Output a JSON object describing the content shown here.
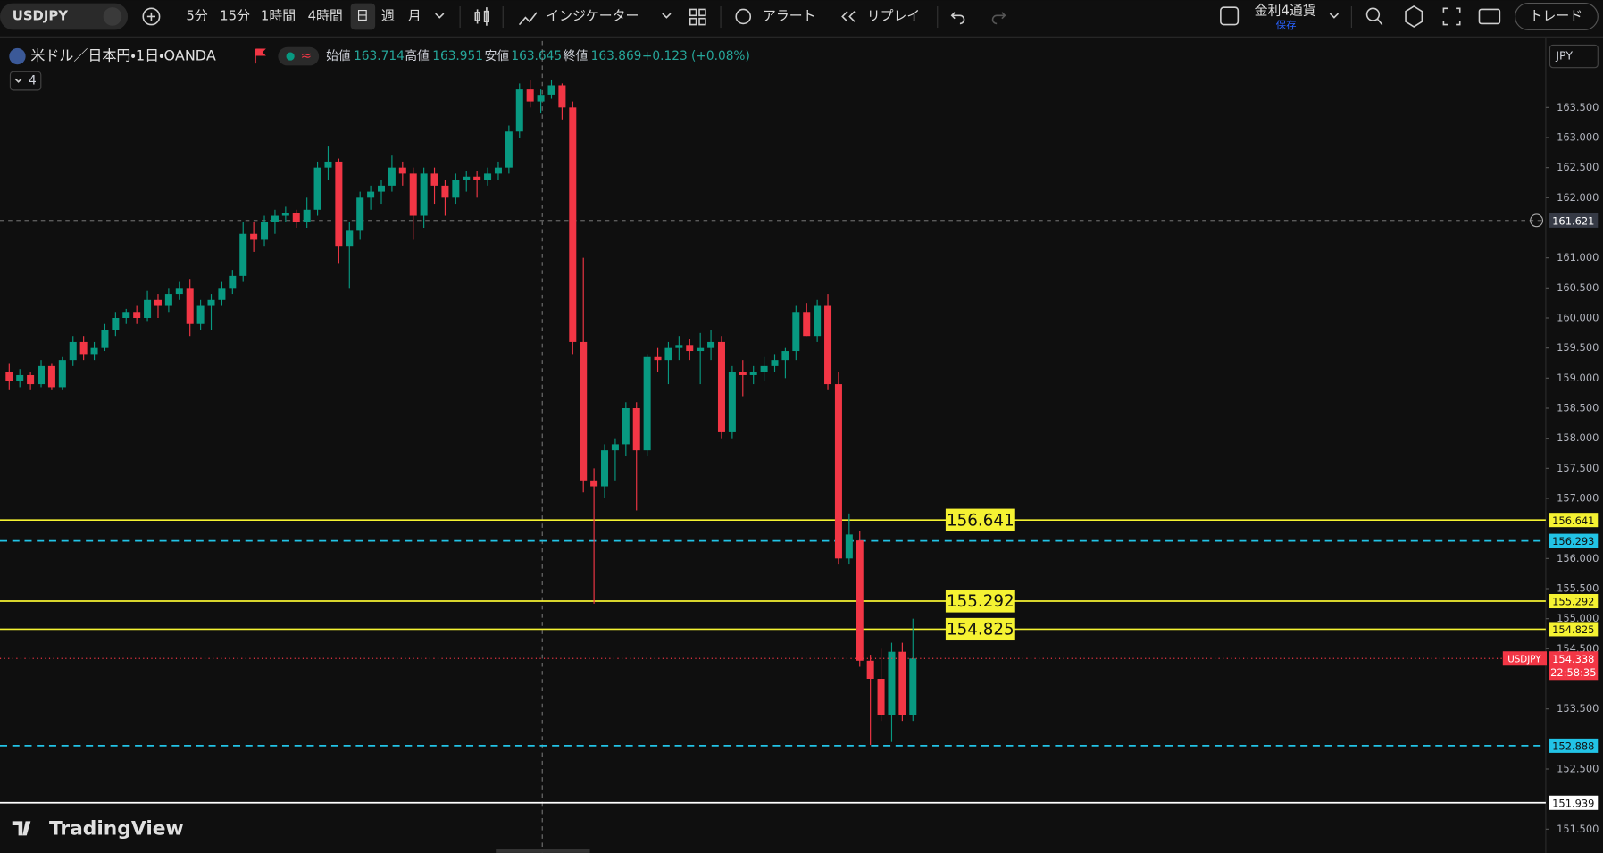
{
  "toolbar": {
    "symbol": "USDJPY",
    "intervals": [
      "5分",
      "15分",
      "1時間",
      "4時間",
      "日",
      "週",
      "月"
    ],
    "indicators": "インジケーター",
    "alert": "アラート",
    "replay": "リプレイ",
    "watchlist": "金利4通貨",
    "saved": "保存",
    "trade": "トレード"
  },
  "legend": {
    "instrument": "米ドル／日本円・1日・OANDA",
    "open_label": "始値",
    "open": 163.714,
    "high_label": "高値",
    "high": 163.951,
    "low_label": "安値",
    "low": 163.645,
    "close_label": "終値",
    "close": 163.869,
    "change": "+0.123 (+0.08%)",
    "indicator_count": 4
  },
  "branding": "TradingView",
  "chart_data": {
    "type": "candlestick",
    "currency": "JPY",
    "up_color": "#089981",
    "down_color": "#f23645",
    "ylim": [
      151.106,
      164.605
    ],
    "yticks": [
      {
        "value": 163.5,
        "label": "163.500"
      },
      {
        "value": 163,
        "label": "163.000"
      },
      {
        "value": 162.5,
        "label": "162.500"
      },
      {
        "value": 162,
        "label": "162.000"
      },
      {
        "value": 161,
        "label": "161.000"
      },
      {
        "value": 160.5,
        "label": "160.500"
      },
      {
        "value": 160,
        "label": "160.000"
      },
      {
        "value": 159.5,
        "label": "159.500"
      },
      {
        "value": 159,
        "label": "159.000"
      },
      {
        "value": 158.5,
        "label": "158.500"
      },
      {
        "value": 158,
        "label": "158.000"
      },
      {
        "value": 157.5,
        "label": "157.500"
      },
      {
        "value": 157,
        "label": "157.000"
      },
      {
        "value": 156,
        "label": "156.000"
      },
      {
        "value": 155.5,
        "label": "155.500"
      },
      {
        "value": 155,
        "label": "155.000"
      },
      {
        "value": 154.5,
        "label": "154.500"
      },
      {
        "value": 153.5,
        "label": "153.500"
      },
      {
        "value": 152.5,
        "label": "152.500"
      },
      {
        "value": 151.5,
        "label": "151.500"
      }
    ],
    "ohlc": [
      [
        159.1,
        159.25,
        158.8,
        158.95
      ],
      [
        158.95,
        159.15,
        158.85,
        159.05
      ],
      [
        159.05,
        159.1,
        158.8,
        158.9
      ],
      [
        158.9,
        159.3,
        158.85,
        159.2
      ],
      [
        159.2,
        159.25,
        158.8,
        158.85
      ],
      [
        158.85,
        159.35,
        158.8,
        159.3
      ],
      [
        159.3,
        159.7,
        159.2,
        159.6
      ],
      [
        159.6,
        159.7,
        159.3,
        159.4
      ],
      [
        159.4,
        159.6,
        159.3,
        159.5
      ],
      [
        159.5,
        159.9,
        159.45,
        159.8
      ],
      [
        159.8,
        160.1,
        159.7,
        160.0
      ],
      [
        160.0,
        160.15,
        159.9,
        160.1
      ],
      [
        160.1,
        160.2,
        159.9,
        160.0
      ],
      [
        160.0,
        160.45,
        159.95,
        160.3
      ],
      [
        160.3,
        160.4,
        160.0,
        160.2
      ],
      [
        160.2,
        160.5,
        160.1,
        160.4
      ],
      [
        160.4,
        160.6,
        160.3,
        160.5
      ],
      [
        160.5,
        160.65,
        159.7,
        159.9
      ],
      [
        159.9,
        160.3,
        159.8,
        160.2
      ],
      [
        160.2,
        160.4,
        159.8,
        160.3
      ],
      [
        160.3,
        160.6,
        160.2,
        160.5
      ],
      [
        160.5,
        160.8,
        160.4,
        160.7
      ],
      [
        160.7,
        161.6,
        160.6,
        161.4
      ],
      [
        161.4,
        161.6,
        161.1,
        161.3
      ],
      [
        161.3,
        161.7,
        161.2,
        161.6
      ],
      [
        161.6,
        161.8,
        161.4,
        161.7
      ],
      [
        161.7,
        161.85,
        161.6,
        161.75
      ],
      [
        161.75,
        161.8,
        161.5,
        161.6
      ],
      [
        161.6,
        162.0,
        161.5,
        161.8
      ],
      [
        161.8,
        162.6,
        161.7,
        162.5
      ],
      [
        162.5,
        162.85,
        162.3,
        162.6
      ],
      [
        162.6,
        162.65,
        160.9,
        161.2
      ],
      [
        161.2,
        161.6,
        160.5,
        161.45
      ],
      [
        161.45,
        162.1,
        161.3,
        162.0
      ],
      [
        162.0,
        162.2,
        161.8,
        162.1
      ],
      [
        162.1,
        162.3,
        161.9,
        162.2
      ],
      [
        162.2,
        162.7,
        162.1,
        162.5
      ],
      [
        162.5,
        162.6,
        162.2,
        162.4
      ],
      [
        162.4,
        162.5,
        161.3,
        161.7
      ],
      [
        161.7,
        162.5,
        161.5,
        162.4
      ],
      [
        162.4,
        162.5,
        161.9,
        162.2
      ],
      [
        162.2,
        162.3,
        161.7,
        162.0
      ],
      [
        162.0,
        162.4,
        161.9,
        162.3
      ],
      [
        162.3,
        162.45,
        162.1,
        162.35
      ],
      [
        162.35,
        162.45,
        162.0,
        162.3
      ],
      [
        162.3,
        162.5,
        162.2,
        162.4
      ],
      [
        162.4,
        162.6,
        162.3,
        162.5
      ],
      [
        162.5,
        163.2,
        162.4,
        163.1
      ],
      [
        163.1,
        163.9,
        163.0,
        163.8
      ],
      [
        163.8,
        163.95,
        163.5,
        163.6
      ],
      [
        163.6,
        163.8,
        163.4,
        163.71
      ],
      [
        163.714,
        163.951,
        163.645,
        163.869
      ],
      [
        163.869,
        163.9,
        163.3,
        163.5
      ],
      [
        163.5,
        163.6,
        159.4,
        159.6
      ],
      [
        159.6,
        161.0,
        157.1,
        157.3
      ],
      [
        157.3,
        157.5,
        155.25,
        157.2
      ],
      [
        157.2,
        157.9,
        157.0,
        157.8
      ],
      [
        157.8,
        158.0,
        157.3,
        157.9
      ],
      [
        157.9,
        158.6,
        157.7,
        158.5
      ],
      [
        158.5,
        158.6,
        156.8,
        157.8
      ],
      [
        157.8,
        159.4,
        157.7,
        159.35
      ],
      [
        159.35,
        159.5,
        159.1,
        159.3
      ],
      [
        159.3,
        159.6,
        158.9,
        159.5
      ],
      [
        159.5,
        159.7,
        159.3,
        159.55
      ],
      [
        159.55,
        159.65,
        159.3,
        159.45
      ],
      [
        159.45,
        159.75,
        158.9,
        159.5
      ],
      [
        159.5,
        159.8,
        159.3,
        159.6
      ],
      [
        159.6,
        159.7,
        158.0,
        158.1
      ],
      [
        158.1,
        159.2,
        158.0,
        159.1
      ],
      [
        159.1,
        159.3,
        158.7,
        159.05
      ],
      [
        159.05,
        159.2,
        158.9,
        159.1
      ],
      [
        159.1,
        159.35,
        158.95,
        159.2
      ],
      [
        159.2,
        159.4,
        159.1,
        159.3
      ],
      [
        159.3,
        159.5,
        159.0,
        159.45
      ],
      [
        159.45,
        160.2,
        159.3,
        160.1
      ],
      [
        160.1,
        160.25,
        159.7,
        159.7
      ],
      [
        159.7,
        160.3,
        159.6,
        160.2
      ],
      [
        160.2,
        160.4,
        158.8,
        158.9
      ],
      [
        158.9,
        159.1,
        155.9,
        156.0
      ],
      [
        156.0,
        156.75,
        155.9,
        156.4
      ],
      [
        156.3,
        156.45,
        154.2,
        154.3
      ],
      [
        154.3,
        154.4,
        152.9,
        154.0
      ],
      [
        154.0,
        154.5,
        153.3,
        153.4
      ],
      [
        153.4,
        154.6,
        152.95,
        154.45
      ],
      [
        154.45,
        154.6,
        153.3,
        153.4
      ],
      [
        153.4,
        155.0,
        153.3,
        154.338
      ]
    ],
    "levels": [
      {
        "value": 156.641,
        "color": "#f5f232",
        "style": "solid",
        "boxed": true
      },
      {
        "value": 156.293,
        "color": "#22c3e6",
        "style": "dashed",
        "boxed": false
      },
      {
        "value": 155.292,
        "color": "#f5f232",
        "style": "solid",
        "boxed": true
      },
      {
        "value": 154.825,
        "color": "#f5f232",
        "style": "solid",
        "boxed": true
      },
      {
        "value": 152.888,
        "color": "#22c3e6",
        "style": "dashed",
        "boxed": false
      },
      {
        "value": 151.939,
        "color": "#ffffff",
        "style": "solid",
        "boxed": false
      }
    ],
    "last_price": {
      "symbol": "USDJPY",
      "value": 154.338,
      "countdown": "22:58:35",
      "color": "#f23645"
    },
    "crosshair": {
      "price": 161.621,
      "index": 51
    }
  }
}
